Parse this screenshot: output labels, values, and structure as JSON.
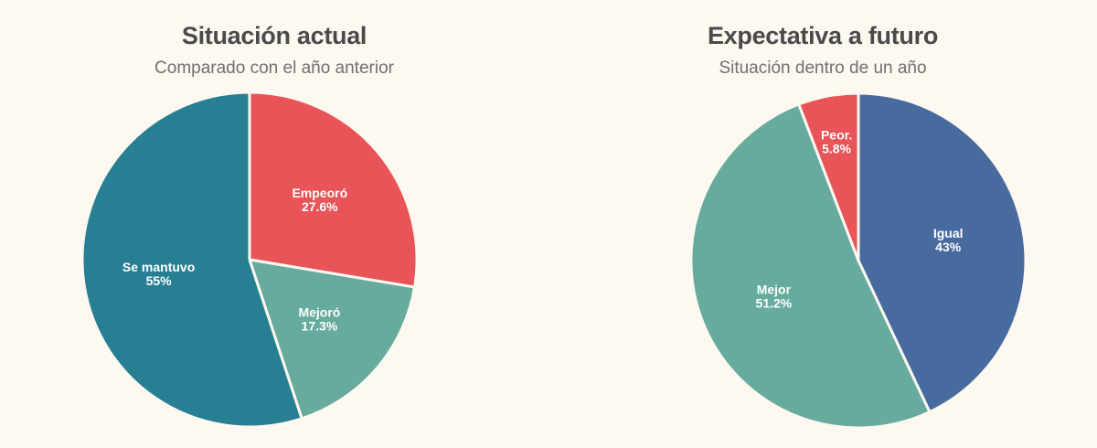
{
  "chart_data": [
    {
      "type": "pie",
      "title": "Situación actual",
      "subtitle": "Comparado con el año anterior",
      "categories": [
        "Empeoró",
        "Mejoró",
        "Se mantuvo"
      ],
      "values": [
        27.6,
        17.3,
        55
      ],
      "value_labels": [
        "27.6%",
        "17.3%",
        "55%"
      ],
      "colors": [
        "#e85457",
        "#66ab9d",
        "#277f94"
      ]
    },
    {
      "type": "pie",
      "title": "Expectativa a futuro",
      "subtitle": "Situación dentro de un año",
      "categories": [
        "Igual",
        "Mejor",
        "Peor."
      ],
      "values": [
        43,
        51.2,
        5.8
      ],
      "value_labels": [
        "43%",
        "51.2%",
        "5.8%"
      ],
      "colors": [
        "#486b9f",
        "#66ab9d",
        "#e85457"
      ]
    }
  ]
}
